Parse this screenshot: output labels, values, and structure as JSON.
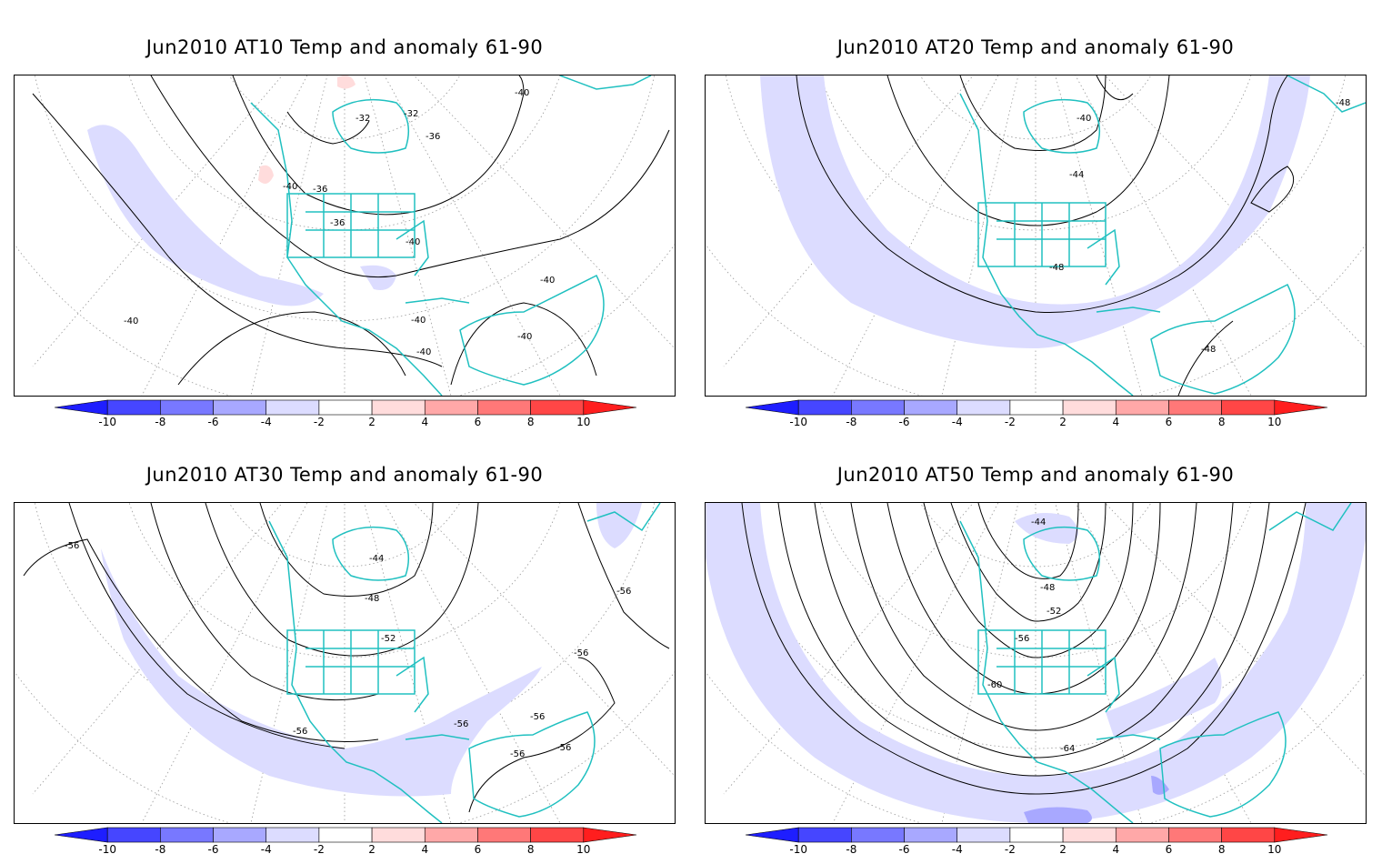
{
  "panels": [
    {
      "title": "Jun2010 AT10 Temp and anomaly 61-90",
      "contour_labels": [
        "-40",
        "-32",
        "-32",
        "-36",
        "-40",
        "-36",
        "-36",
        "-40",
        "-40",
        "-40",
        "-40",
        "-40",
        "-40"
      ]
    },
    {
      "title": "Jun2010 AT20 Temp and anomaly 61-90",
      "contour_labels": [
        "-40",
        "-44",
        "-48",
        "-48",
        "-48"
      ]
    },
    {
      "title": "Jun2010 AT30 Temp and anomaly 61-90",
      "contour_labels": [
        "-56",
        "-44",
        "-48",
        "-52",
        "-56",
        "-56",
        "-56",
        "-56",
        "-56",
        "-56",
        "-56"
      ]
    },
    {
      "title": "Jun2010 AT50 Temp and anomaly 61-90",
      "contour_labels": [
        "-44",
        "-48",
        "-52",
        "-56",
        "-60",
        "-64"
      ]
    }
  ],
  "colorbar": {
    "labels": [
      "-10",
      "-8",
      "-6",
      "-4",
      "-2",
      "2",
      "4",
      "6",
      "8",
      "10"
    ],
    "colors": [
      "#1e1eff",
      "#4646ff",
      "#7878ff",
      "#a8a8ff",
      "#dcdcff",
      "#ffffff",
      "#ffdcdc",
      "#ffa8a8",
      "#ff7878",
      "#ff4646",
      "#ff1e1e"
    ]
  },
  "colors": {
    "coastline": "#20c0c0",
    "negative_anomaly_fill": "#dcdcff",
    "positive_anomaly_fill": "#ffdcdc",
    "contour": "#000000",
    "graticule": "#999999"
  }
}
